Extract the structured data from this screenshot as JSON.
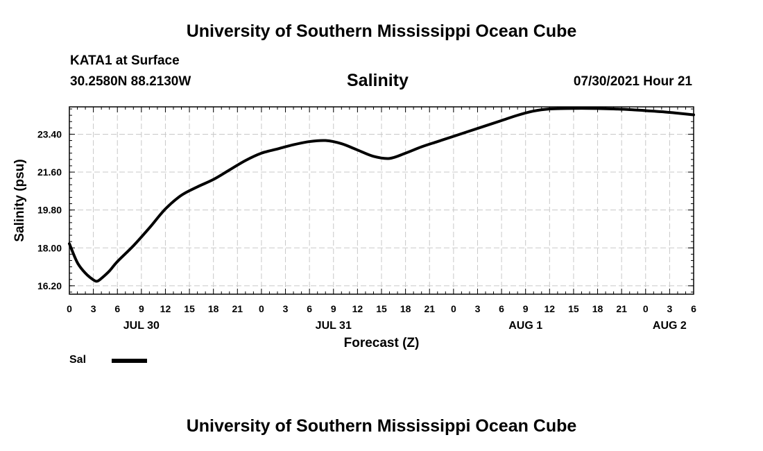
{
  "header": {
    "title": "University of Southern Mississippi Ocean Cube",
    "station": "KATA1 at Surface",
    "coords": "30.2580N  88.2130W",
    "chart_title": "Salinity",
    "datetime": "07/30/2021 Hour 21"
  },
  "footer": {
    "title": "University of Southern Mississippi Ocean Cube"
  },
  "legend": {
    "label": "Sal"
  },
  "colors": {
    "line": "#000000",
    "grid": "#c8c8c8",
    "background": "#ffffff"
  },
  "chart_data": {
    "type": "line",
    "title": "Salinity",
    "xlabel": "Forecast (Z)",
    "ylabel": "Salinity (psu)",
    "xlim": [
      0,
      78
    ],
    "ylim": [
      15.8,
      24.7
    ],
    "yticks": [
      16.2,
      18.0,
      19.8,
      21.6,
      23.4
    ],
    "ytick_labels": [
      "16.20",
      "18.00",
      "19.80",
      "21.60",
      "23.40"
    ],
    "xtick_labels": [
      "0",
      "3",
      "6",
      "9",
      "12",
      "15",
      "18",
      "21",
      "0",
      "3",
      "6",
      "9",
      "12",
      "15",
      "18",
      "21",
      "0",
      "3",
      "6",
      "9",
      "12",
      "15",
      "18",
      "21",
      "0",
      "3",
      "6"
    ],
    "date_labels": [
      {
        "hour": 9,
        "label": "JUL 30"
      },
      {
        "hour": 33,
        "label": "JUL 31"
      },
      {
        "hour": 57,
        "label": "AUG 1"
      },
      {
        "hour": 75,
        "label": "AUG 2"
      }
    ],
    "grid": true,
    "legend_position": "bottom-left",
    "series": [
      {
        "name": "Sal",
        "x": [
          0,
          1,
          2,
          3,
          3.5,
          4,
          5,
          6,
          8,
          10,
          12,
          14,
          16,
          18,
          20,
          22,
          24,
          26,
          28,
          30,
          32,
          34,
          36,
          38,
          40,
          42,
          44,
          46,
          48,
          50,
          52,
          54,
          56,
          58,
          60,
          62,
          64,
          66,
          68,
          70,
          72,
          74,
          76,
          78
        ],
        "values": [
          18.2,
          17.3,
          16.8,
          16.48,
          16.42,
          16.55,
          16.9,
          17.35,
          18.1,
          18.95,
          19.85,
          20.5,
          20.9,
          21.25,
          21.7,
          22.15,
          22.5,
          22.7,
          22.9,
          23.05,
          23.1,
          22.95,
          22.65,
          22.35,
          22.25,
          22.5,
          22.8,
          23.05,
          23.3,
          23.55,
          23.8,
          24.05,
          24.3,
          24.5,
          24.6,
          24.62,
          24.63,
          24.62,
          24.6,
          24.57,
          24.52,
          24.47,
          24.4,
          24.32
        ]
      }
    ]
  }
}
